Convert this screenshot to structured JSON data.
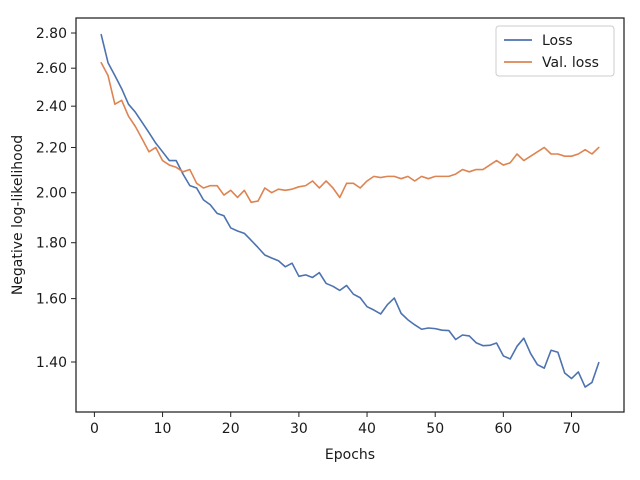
{
  "chart_data": {
    "type": "line",
    "title": "",
    "xlabel": "Epochs",
    "ylabel": "Negative log-likelihood",
    "y_scale": "log",
    "xlim": [
      -2.7,
      77.7
    ],
    "ylim": [
      1.26,
      2.89
    ],
    "xticks": [
      0,
      10,
      20,
      30,
      40,
      50,
      60,
      70
    ],
    "xtick_labels": [
      "0",
      "10",
      "20",
      "30",
      "40",
      "50",
      "60",
      "70"
    ],
    "yticks": [
      1.4,
      1.6,
      1.8,
      2.0,
      2.2,
      2.4,
      2.6,
      2.8
    ],
    "ytick_labels": [
      "1.40",
      "1.60",
      "1.80",
      "2.00",
      "2.20",
      "2.40",
      "2.60",
      "2.80"
    ],
    "grid": false,
    "legend_position": "top-right",
    "x": [
      1,
      2,
      3,
      4,
      5,
      6,
      7,
      8,
      9,
      10,
      11,
      12,
      13,
      14,
      15,
      16,
      17,
      18,
      19,
      20,
      21,
      22,
      23,
      24,
      25,
      26,
      27,
      28,
      29,
      30,
      31,
      32,
      33,
      34,
      35,
      36,
      37,
      38,
      39,
      40,
      41,
      42,
      43,
      44,
      45,
      46,
      47,
      48,
      49,
      50,
      51,
      52,
      53,
      54,
      55,
      56,
      57,
      58,
      59,
      60,
      61,
      62,
      63,
      64,
      65,
      66,
      67,
      68,
      69,
      70,
      71,
      72,
      73,
      74
    ],
    "series": [
      {
        "name": "Loss",
        "color": "#4c72b0",
        "values": [
          2.79,
          2.63,
          2.56,
          2.49,
          2.41,
          2.37,
          2.32,
          2.27,
          2.22,
          2.18,
          2.14,
          2.14,
          2.08,
          2.03,
          2.02,
          1.97,
          1.95,
          1.915,
          1.905,
          1.857,
          1.845,
          1.836,
          1.809,
          1.782,
          1.754,
          1.743,
          1.733,
          1.711,
          1.724,
          1.677,
          1.682,
          1.673,
          1.69,
          1.652,
          1.642,
          1.628,
          1.645,
          1.615,
          1.603,
          1.573,
          1.562,
          1.549,
          1.58,
          1.602,
          1.551,
          1.53,
          1.514,
          1.5,
          1.504,
          1.502,
          1.497,
          1.496,
          1.468,
          1.482,
          1.479,
          1.458,
          1.449,
          1.45,
          1.457,
          1.418,
          1.409,
          1.447,
          1.472,
          1.425,
          1.392,
          1.382,
          1.435,
          1.429,
          1.368,
          1.352,
          1.371,
          1.328,
          1.341,
          1.398
        ]
      },
      {
        "name": "Val. loss",
        "color": "#dd8452",
        "values": [
          2.63,
          2.56,
          2.41,
          2.43,
          2.35,
          2.3,
          2.24,
          2.18,
          2.2,
          2.14,
          2.12,
          2.11,
          2.09,
          2.1,
          2.04,
          2.02,
          2.03,
          2.03,
          1.99,
          2.01,
          1.98,
          2.01,
          1.96,
          1.965,
          2.02,
          2.0,
          2.015,
          2.01,
          2.015,
          2.025,
          2.03,
          2.05,
          2.02,
          2.05,
          2.02,
          1.98,
          2.04,
          2.04,
          2.02,
          2.05,
          2.07,
          2.065,
          2.07,
          2.07,
          2.06,
          2.07,
          2.05,
          2.07,
          2.06,
          2.07,
          2.07,
          2.07,
          2.08,
          2.1,
          2.09,
          2.1,
          2.1,
          2.12,
          2.14,
          2.12,
          2.13,
          2.17,
          2.14,
          2.16,
          2.18,
          2.2,
          2.17,
          2.17,
          2.16,
          2.16,
          2.17,
          2.19,
          2.17,
          2.2
        ]
      }
    ]
  }
}
